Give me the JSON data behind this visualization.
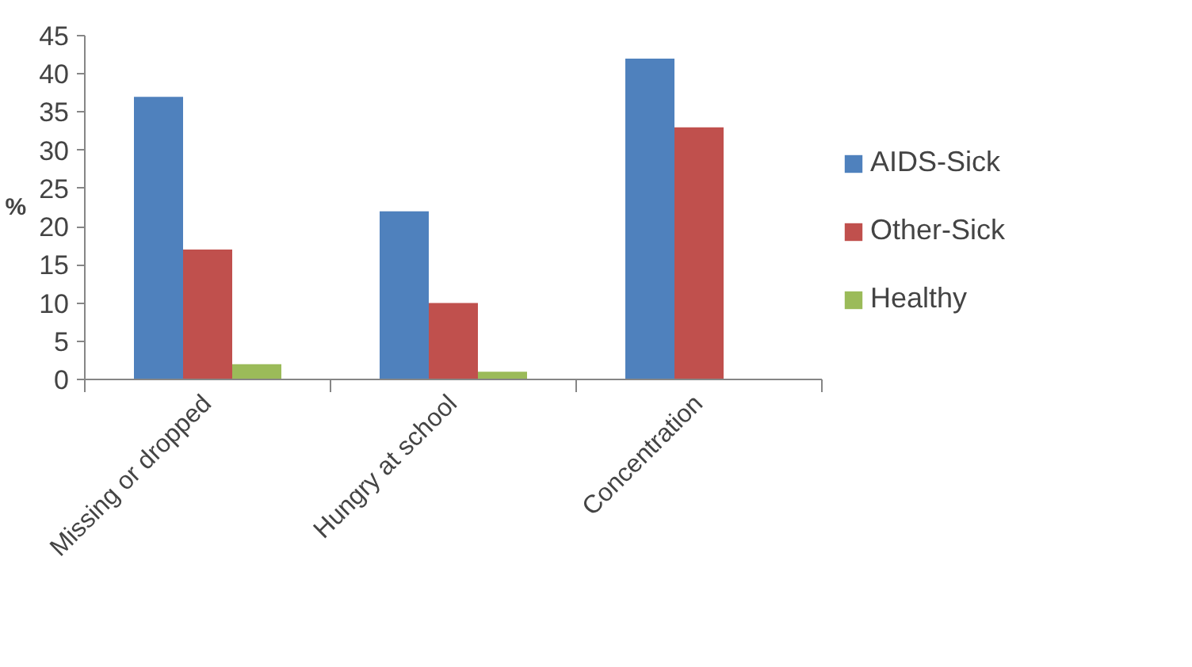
{
  "chart_data": {
    "type": "bar",
    "ylabel": "%",
    "categories": [
      "Missing or dropped",
      "Hungry at school",
      "Concentration"
    ],
    "series": [
      {
        "name": "AIDS-Sick",
        "color": "#4f81bd",
        "values": [
          37,
          22,
          42
        ]
      },
      {
        "name": "Other-Sick",
        "color": "#c0504d",
        "values": [
          17,
          10,
          33
        ]
      },
      {
        "name": "Healthy",
        "color": "#9bbb59",
        "values": [
          2,
          1,
          null
        ]
      }
    ],
    "ylim": [
      0,
      45
    ],
    "yticks": [
      0,
      5,
      10,
      15,
      20,
      25,
      30,
      35,
      40,
      45
    ],
    "grid": false,
    "legend": "right"
  }
}
